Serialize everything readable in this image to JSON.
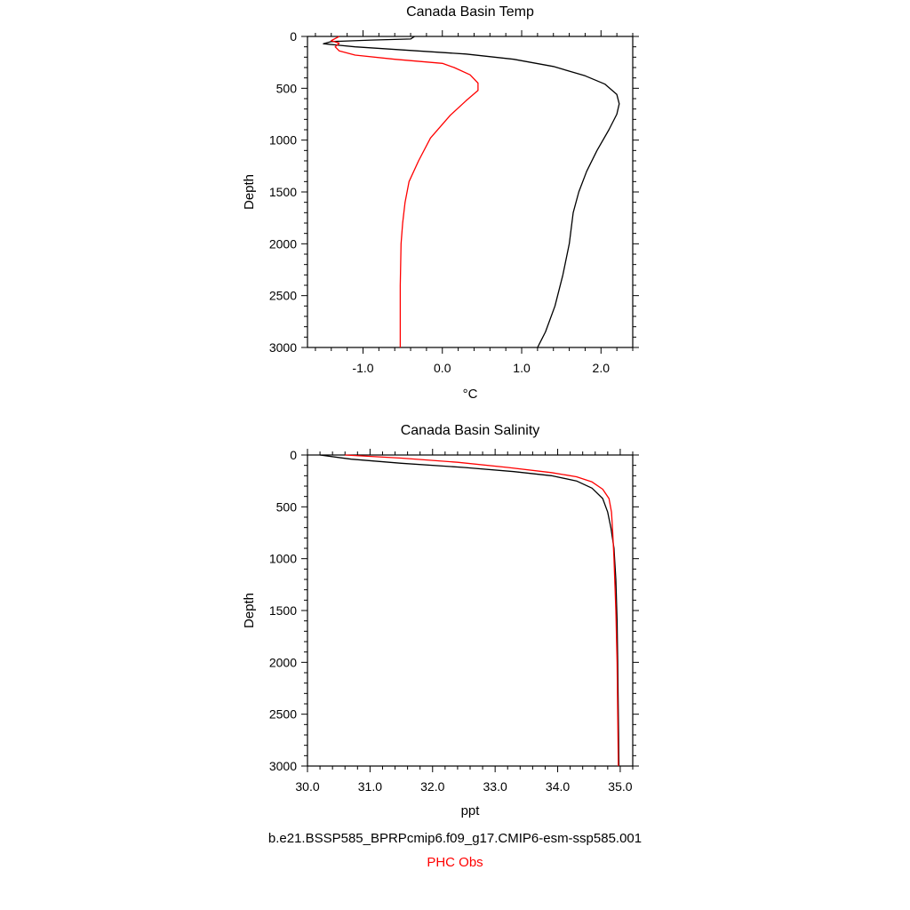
{
  "colors": {
    "model": "#000000",
    "obs": "#ff0000"
  },
  "legend": {
    "model_label": "b.e21.BSSP585_BPRPcmip6.f09_g17.CMIP6-esm-ssp585.001",
    "obs_label": "PHC Obs"
  },
  "chart_data": [
    {
      "type": "line",
      "title": "Canada Basin Temp",
      "xlabel": "°C",
      "ylabel": "Depth",
      "xlim": [
        -1.7,
        2.4
      ],
      "ylim": [
        3000,
        0
      ],
      "y_inverted": true,
      "xticks": [
        -1.0,
        0.0,
        1.0,
        2.0
      ],
      "xtick_labels": [
        "-1.0",
        "0.0",
        "1.0",
        "2.0"
      ],
      "yticks": [
        0,
        500,
        1000,
        1500,
        2000,
        2500,
        3000
      ],
      "ytick_labels": [
        "0",
        "500",
        "1000",
        "1500",
        "2000",
        "2500",
        "3000"
      ],
      "series": [
        {
          "name": "b.e21.BSSP585_BPRPcmip6.f09_g17.CMIP6-esm-ssp585.001",
          "color": "#000000",
          "points": [
            [
              -0.35,
              0
            ],
            [
              -0.4,
              25
            ],
            [
              -0.9,
              35
            ],
            [
              -1.4,
              50
            ],
            [
              -1.5,
              70
            ],
            [
              -1.1,
              100
            ],
            [
              -0.5,
              130
            ],
            [
              0.3,
              170
            ],
            [
              0.9,
              220
            ],
            [
              1.4,
              290
            ],
            [
              1.8,
              380
            ],
            [
              2.05,
              460
            ],
            [
              2.2,
              560
            ],
            [
              2.23,
              650
            ],
            [
              2.2,
              750
            ],
            [
              2.1,
              900
            ],
            [
              1.95,
              1100
            ],
            [
              1.82,
              1300
            ],
            [
              1.72,
              1500
            ],
            [
              1.65,
              1700
            ],
            [
              1.6,
              2000
            ],
            [
              1.52,
              2300
            ],
            [
              1.42,
              2600
            ],
            [
              1.3,
              2850
            ],
            [
              1.2,
              3000
            ]
          ]
        },
        {
          "name": "PHC Obs",
          "color": "#ff0000",
          "points": [
            [
              -1.3,
              0
            ],
            [
              -1.4,
              40
            ],
            [
              -1.3,
              65
            ],
            [
              -1.35,
              100
            ],
            [
              -1.3,
              140
            ],
            [
              -1.1,
              180
            ],
            [
              -0.6,
              220
            ],
            [
              0.0,
              260
            ],
            [
              0.15,
              300
            ],
            [
              0.35,
              370
            ],
            [
              0.45,
              450
            ],
            [
              0.45,
              520
            ],
            [
              0.3,
              620
            ],
            [
              0.1,
              760
            ],
            [
              -0.15,
              980
            ],
            [
              -0.3,
              1200
            ],
            [
              -0.42,
              1400
            ],
            [
              -0.47,
              1600
            ],
            [
              -0.5,
              1800
            ],
            [
              -0.52,
              2000
            ],
            [
              -0.53,
              2400
            ],
            [
              -0.53,
              3000
            ]
          ]
        }
      ]
    },
    {
      "type": "line",
      "title": "Canada Basin Salinity",
      "xlabel": "ppt",
      "ylabel": "Depth",
      "xlim": [
        30.0,
        35.2
      ],
      "ylim": [
        3000,
        0
      ],
      "y_inverted": true,
      "xticks": [
        30.0,
        31.0,
        32.0,
        33.0,
        34.0,
        35.0
      ],
      "xtick_labels": [
        "30.0",
        "31.0",
        "32.0",
        "33.0",
        "34.0",
        "35.0"
      ],
      "yticks": [
        0,
        500,
        1000,
        1500,
        2000,
        2500,
        3000
      ],
      "ytick_labels": [
        "0",
        "500",
        "1000",
        "1500",
        "2000",
        "2500",
        "3000"
      ],
      "series": [
        {
          "name": "b.e21.BSSP585_BPRPcmip6.f09_g17.CMIP6-esm-ssp585.001",
          "color": "#000000",
          "points": [
            [
              30.2,
              0
            ],
            [
              30.7,
              40
            ],
            [
              31.5,
              80
            ],
            [
              32.5,
              120
            ],
            [
              33.3,
              160
            ],
            [
              33.9,
              200
            ],
            [
              34.3,
              250
            ],
            [
              34.55,
              320
            ],
            [
              34.72,
              420
            ],
            [
              34.8,
              550
            ],
            [
              34.85,
              700
            ],
            [
              34.9,
              900
            ],
            [
              34.93,
              1200
            ],
            [
              34.95,
              1600
            ],
            [
              34.96,
              2000
            ],
            [
              34.97,
              2500
            ],
            [
              34.98,
              3000
            ]
          ]
        },
        {
          "name": "PHC Obs",
          "color": "#ff0000",
          "points": [
            [
              30.6,
              0
            ],
            [
              31.5,
              30
            ],
            [
              32.4,
              70
            ],
            [
              33.2,
              120
            ],
            [
              33.9,
              170
            ],
            [
              34.3,
              210
            ],
            [
              34.55,
              260
            ],
            [
              34.72,
              330
            ],
            [
              34.82,
              420
            ],
            [
              34.86,
              550
            ],
            [
              34.88,
              750
            ],
            [
              34.9,
              1000
            ],
            [
              34.93,
              1500
            ],
            [
              34.95,
              2000
            ],
            [
              34.96,
              2500
            ],
            [
              34.97,
              3000
            ]
          ]
        }
      ]
    }
  ]
}
